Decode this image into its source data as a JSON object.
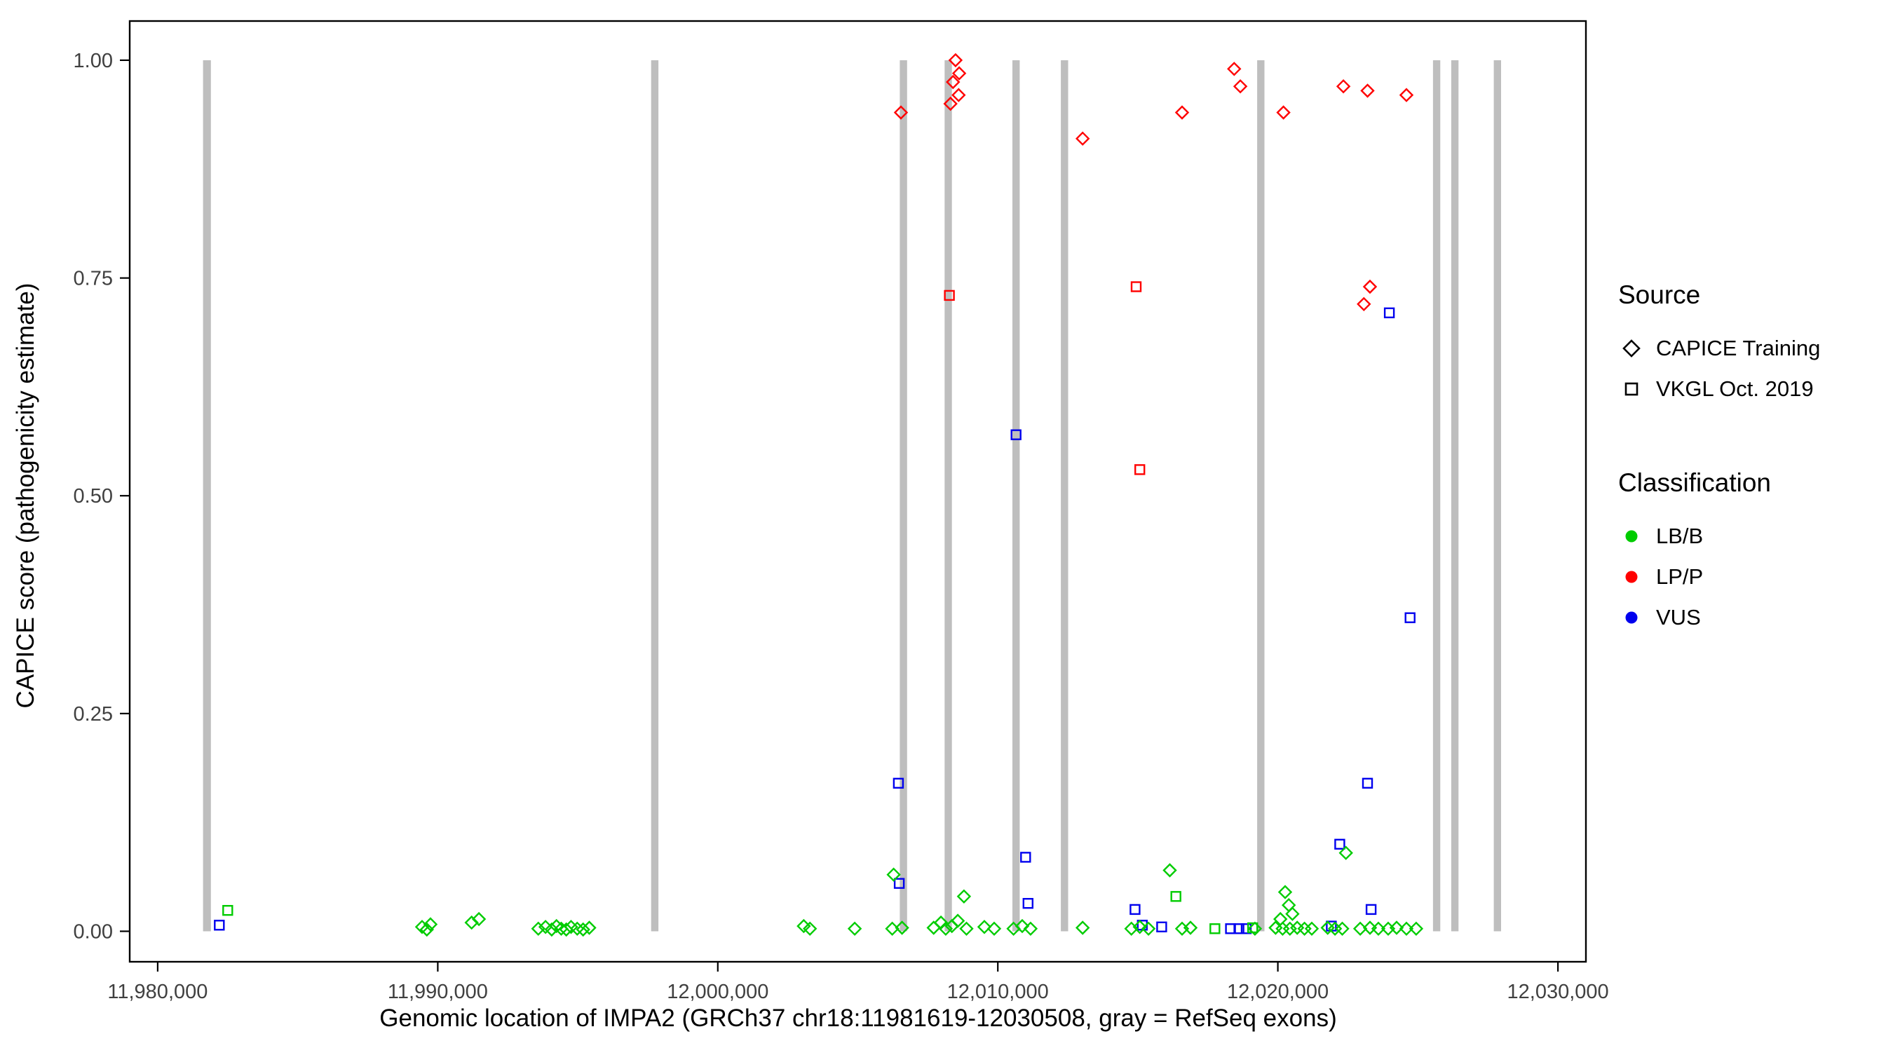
{
  "chart_data": {
    "type": "scatter",
    "title": "",
    "xlabel": "Genomic location of IMPA2 (GRCh37 chr18:11981619-12030508, gray = RefSeq exons)",
    "ylabel": "CAPICE score (pathogenicity estimate)",
    "xlim": [
      11979000,
      12031000
    ],
    "ylim": [
      -0.035,
      1.045
    ],
    "x_ticks": [
      11980000,
      11990000,
      12000000,
      12010000,
      12020000,
      12030000
    ],
    "x_tick_labels": [
      "11,980,000",
      "11,990,000",
      "12,000,000",
      "12,010,000",
      "12,020,000",
      "12,030,000"
    ],
    "y_ticks": [
      0,
      0.25,
      0.5,
      0.75,
      1.0
    ],
    "y_tick_labels": [
      "0.00",
      "0.25",
      "0.50",
      "0.75",
      "1.00"
    ],
    "grid": false,
    "exon_color": "#bebebe",
    "classification_colors": {
      "LB/B": "#00cc00",
      "LP/P": "#ff0000",
      "VUS": "#0000ee"
    },
    "source_shapes": {
      "CAPICE Training": "diamond",
      "VKGL Oct. 2019": "square"
    },
    "exons": [
      {
        "start": 11981619,
        "end": 11981900
      },
      {
        "start": 11997620,
        "end": 11997880
      },
      {
        "start": 12006500,
        "end": 12006760
      },
      {
        "start": 12008100,
        "end": 12008360
      },
      {
        "start": 12010520,
        "end": 12010780
      },
      {
        "start": 12012250,
        "end": 12012510
      },
      {
        "start": 12019260,
        "end": 12019520
      },
      {
        "start": 12025540,
        "end": 12025800
      },
      {
        "start": 12026190,
        "end": 12026450
      },
      {
        "start": 12027710,
        "end": 12027970
      }
    ],
    "points_columns": [
      "position",
      "score",
      "source",
      "classification"
    ],
    "points": [
      [
        12006540,
        0.94,
        "CAPICE Training",
        "LP/P"
      ],
      [
        12008310,
        0.95,
        "CAPICE Training",
        "LP/P"
      ],
      [
        12008490,
        1.0,
        "CAPICE Training",
        "LP/P"
      ],
      [
        12008620,
        0.985,
        "CAPICE Training",
        "LP/P"
      ],
      [
        12008400,
        0.975,
        "CAPICE Training",
        "LP/P"
      ],
      [
        12008600,
        0.96,
        "CAPICE Training",
        "LP/P"
      ],
      [
        12013030,
        0.91,
        "CAPICE Training",
        "LP/P"
      ],
      [
        12016580,
        0.94,
        "CAPICE Training",
        "LP/P"
      ],
      [
        12018440,
        0.99,
        "CAPICE Training",
        "LP/P"
      ],
      [
        12018660,
        0.97,
        "CAPICE Training",
        "LP/P"
      ],
      [
        12020200,
        0.94,
        "CAPICE Training",
        "LP/P"
      ],
      [
        12022340,
        0.97,
        "CAPICE Training",
        "LP/P"
      ],
      [
        12023200,
        0.965,
        "CAPICE Training",
        "LP/P"
      ],
      [
        12023290,
        0.74,
        "CAPICE Training",
        "LP/P"
      ],
      [
        12023070,
        0.72,
        "CAPICE Training",
        "LP/P"
      ],
      [
        12024590,
        0.96,
        "CAPICE Training",
        "LP/P"
      ],
      [
        12008270,
        0.73,
        "VKGL Oct. 2019",
        "LP/P"
      ],
      [
        12014940,
        0.74,
        "VKGL Oct. 2019",
        "LP/P"
      ],
      [
        12015070,
        0.53,
        "VKGL Oct. 2019",
        "LP/P"
      ],
      [
        11982200,
        0.007,
        "VKGL Oct. 2019",
        "VUS"
      ],
      [
        12006450,
        0.17,
        "VKGL Oct. 2019",
        "VUS"
      ],
      [
        12006480,
        0.055,
        "VKGL Oct. 2019",
        "VUS"
      ],
      [
        12010650,
        0.57,
        "VKGL Oct. 2019",
        "VUS"
      ],
      [
        12010990,
        0.085,
        "VKGL Oct. 2019",
        "VUS"
      ],
      [
        12011080,
        0.032,
        "VKGL Oct. 2019",
        "VUS"
      ],
      [
        12014900,
        0.025,
        "VKGL Oct. 2019",
        "VUS"
      ],
      [
        12015160,
        0.007,
        "VKGL Oct. 2019",
        "VUS"
      ],
      [
        12015850,
        0.005,
        "VKGL Oct. 2019",
        "VUS"
      ],
      [
        12018310,
        0.003,
        "VKGL Oct. 2019",
        "VUS"
      ],
      [
        12018610,
        0.003,
        "VKGL Oct. 2019",
        "VUS"
      ],
      [
        12018870,
        0.003,
        "VKGL Oct. 2019",
        "VUS"
      ],
      [
        12021910,
        0.006,
        "VKGL Oct. 2019",
        "VUS"
      ],
      [
        12022210,
        0.1,
        "VKGL Oct. 2019",
        "VUS"
      ],
      [
        12023200,
        0.17,
        "VKGL Oct. 2019",
        "VUS"
      ],
      [
        12023330,
        0.025,
        "VKGL Oct. 2019",
        "VUS"
      ],
      [
        12023980,
        0.71,
        "VKGL Oct. 2019",
        "VUS"
      ],
      [
        12024720,
        0.36,
        "VKGL Oct. 2019",
        "VUS"
      ],
      [
        11982500,
        0.024,
        "VKGL Oct. 2019",
        "LB/B"
      ],
      [
        12016360,
        0.04,
        "VKGL Oct. 2019",
        "LB/B"
      ],
      [
        12017750,
        0.003,
        "VKGL Oct. 2019",
        "LB/B"
      ],
      [
        12019100,
        0.004,
        "VKGL Oct. 2019",
        "LB/B"
      ],
      [
        11989440,
        0.005,
        "CAPICE Training",
        "LB/B"
      ],
      [
        11989740,
        0.008,
        "CAPICE Training",
        "LB/B"
      ],
      [
        11989610,
        0.002,
        "CAPICE Training",
        "LB/B"
      ],
      [
        11991210,
        0.01,
        "CAPICE Training",
        "LB/B"
      ],
      [
        11991470,
        0.014,
        "CAPICE Training",
        "LB/B"
      ],
      [
        11993590,
        0.003,
        "CAPICE Training",
        "LB/B"
      ],
      [
        11993850,
        0.005,
        "CAPICE Training",
        "LB/B"
      ],
      [
        11994070,
        0.002,
        "CAPICE Training",
        "LB/B"
      ],
      [
        11994240,
        0.006,
        "CAPICE Training",
        "LB/B"
      ],
      [
        11994410,
        0.003,
        "CAPICE Training",
        "LB/B"
      ],
      [
        11994590,
        0.002,
        "CAPICE Training",
        "LB/B"
      ],
      [
        11994760,
        0.005,
        "CAPICE Training",
        "LB/B"
      ],
      [
        11994980,
        0.003,
        "CAPICE Training",
        "LB/B"
      ],
      [
        11995190,
        0.002,
        "CAPICE Training",
        "LB/B"
      ],
      [
        11995410,
        0.004,
        "CAPICE Training",
        "LB/B"
      ],
      [
        12003070,
        0.006,
        "CAPICE Training",
        "LB/B"
      ],
      [
        12003290,
        0.003,
        "CAPICE Training",
        "LB/B"
      ],
      [
        12004890,
        0.003,
        "CAPICE Training",
        "LB/B"
      ],
      [
        12006230,
        0.003,
        "CAPICE Training",
        "LB/B"
      ],
      [
        12006580,
        0.004,
        "CAPICE Training",
        "LB/B"
      ],
      [
        12006280,
        0.065,
        "CAPICE Training",
        "LB/B"
      ],
      [
        12007710,
        0.004,
        "CAPICE Training",
        "LB/B"
      ],
      [
        12007970,
        0.01,
        "CAPICE Training",
        "LB/B"
      ],
      [
        12008140,
        0.003,
        "CAPICE Training",
        "LB/B"
      ],
      [
        12008360,
        0.006,
        "CAPICE Training",
        "LB/B"
      ],
      [
        12008570,
        0.012,
        "CAPICE Training",
        "LB/B"
      ],
      [
        12008880,
        0.003,
        "CAPICE Training",
        "LB/B"
      ],
      [
        12008790,
        0.04,
        "CAPICE Training",
        "LB/B"
      ],
      [
        12009520,
        0.005,
        "CAPICE Training",
        "LB/B"
      ],
      [
        12009870,
        0.003,
        "CAPICE Training",
        "LB/B"
      ],
      [
        12010560,
        0.003,
        "CAPICE Training",
        "LB/B"
      ],
      [
        12010870,
        0.006,
        "CAPICE Training",
        "LB/B"
      ],
      [
        12011170,
        0.003,
        "CAPICE Training",
        "LB/B"
      ],
      [
        12013030,
        0.004,
        "CAPICE Training",
        "LB/B"
      ],
      [
        12014770,
        0.003,
        "CAPICE Training",
        "LB/B"
      ],
      [
        12015070,
        0.005,
        "CAPICE Training",
        "LB/B"
      ],
      [
        12015380,
        0.003,
        "CAPICE Training",
        "LB/B"
      ],
      [
        12016140,
        0.07,
        "CAPICE Training",
        "LB/B"
      ],
      [
        12016580,
        0.003,
        "CAPICE Training",
        "LB/B"
      ],
      [
        12016880,
        0.004,
        "CAPICE Training",
        "LB/B"
      ],
      [
        12019180,
        0.003,
        "CAPICE Training",
        "LB/B"
      ],
      [
        12019920,
        0.004,
        "CAPICE Training",
        "LB/B"
      ],
      [
        12020090,
        0.014,
        "CAPICE Training",
        "LB/B"
      ],
      [
        12020260,
        0.045,
        "CAPICE Training",
        "LB/B"
      ],
      [
        12020390,
        0.03,
        "CAPICE Training",
        "LB/B"
      ],
      [
        12020520,
        0.02,
        "CAPICE Training",
        "LB/B"
      ],
      [
        12020170,
        0.003,
        "CAPICE Training",
        "LB/B"
      ],
      [
        12020430,
        0.003,
        "CAPICE Training",
        "LB/B"
      ],
      [
        12020690,
        0.004,
        "CAPICE Training",
        "LB/B"
      ],
      [
        12020950,
        0.003,
        "CAPICE Training",
        "LB/B"
      ],
      [
        12021210,
        0.003,
        "CAPICE Training",
        "LB/B"
      ],
      [
        12021780,
        0.004,
        "CAPICE Training",
        "LB/B"
      ],
      [
        12022040,
        0.003,
        "CAPICE Training",
        "LB/B"
      ],
      [
        12022300,
        0.003,
        "CAPICE Training",
        "LB/B"
      ],
      [
        12022430,
        0.09,
        "CAPICE Training",
        "LB/B"
      ],
      [
        12022940,
        0.003,
        "CAPICE Training",
        "LB/B"
      ],
      [
        12023290,
        0.004,
        "CAPICE Training",
        "LB/B"
      ],
      [
        12023590,
        0.003,
        "CAPICE Training",
        "LB/B"
      ],
      [
        12023940,
        0.003,
        "CAPICE Training",
        "LB/B"
      ],
      [
        12024240,
        0.004,
        "CAPICE Training",
        "LB/B"
      ],
      [
        12024590,
        0.003,
        "CAPICE Training",
        "LB/B"
      ],
      [
        12024940,
        0.003,
        "CAPICE Training",
        "LB/B"
      ]
    ]
  },
  "legend": {
    "source": {
      "title": "Source",
      "items": [
        {
          "label": "CAPICE Training",
          "shape": "diamond"
        },
        {
          "label": "VKGL Oct. 2019",
          "shape": "square"
        }
      ]
    },
    "classification": {
      "title": "Classification",
      "items": [
        {
          "label": "LB/B",
          "color": "#00cc00"
        },
        {
          "label": "LP/P",
          "color": "#ff0000"
        },
        {
          "label": "VUS",
          "color": "#0000ee"
        }
      ]
    }
  }
}
